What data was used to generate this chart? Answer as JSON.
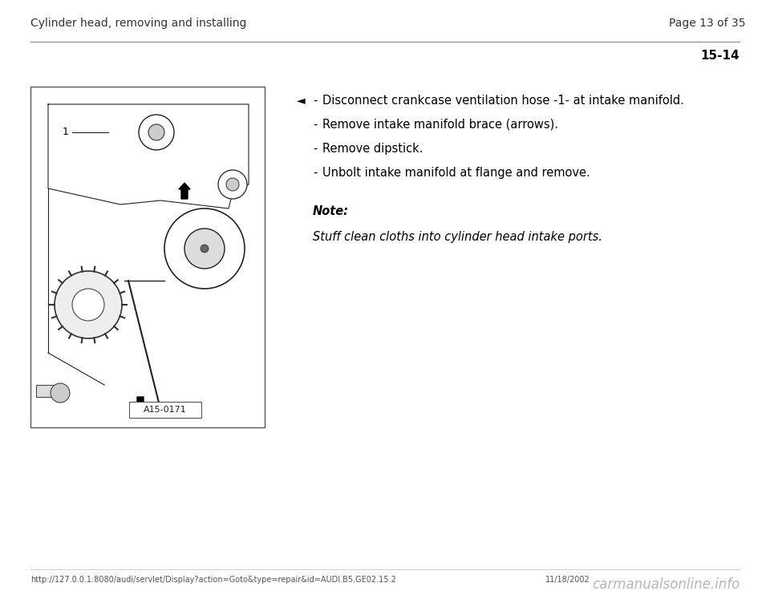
{
  "page_header_left": "Cylinder head, removing and installing",
  "page_header_right": "Page 13 of 35",
  "section_number": "15-14",
  "bullet_points": [
    "Disconnect crankcase ventilation hose -1- at intake manifold.",
    "Remove intake manifold brace (arrows).",
    "Remove dipstick.",
    "Unbolt intake manifold at flange and remove."
  ],
  "note_label": "Note:",
  "note_text": "Stuff clean cloths into cylinder head intake ports.",
  "footer_url": "http://127.0.0.1:8080/audi/servlet/Display?action=Goto&type=repair&id=AUDI.B5.GE02.15.2",
  "footer_date": "11/18/2002",
  "footer_watermark": "carmanualsonline.info",
  "image_label": "A15-0171",
  "bg_color": "#ffffff",
  "header_line_color": "#999999",
  "text_color": "#000000",
  "header_text_color": "#333333",
  "body_fontsize": 10.5,
  "header_fontsize": 10,
  "section_fontsize": 11,
  "footer_fontsize": 7,
  "watermark_fontsize": 12
}
